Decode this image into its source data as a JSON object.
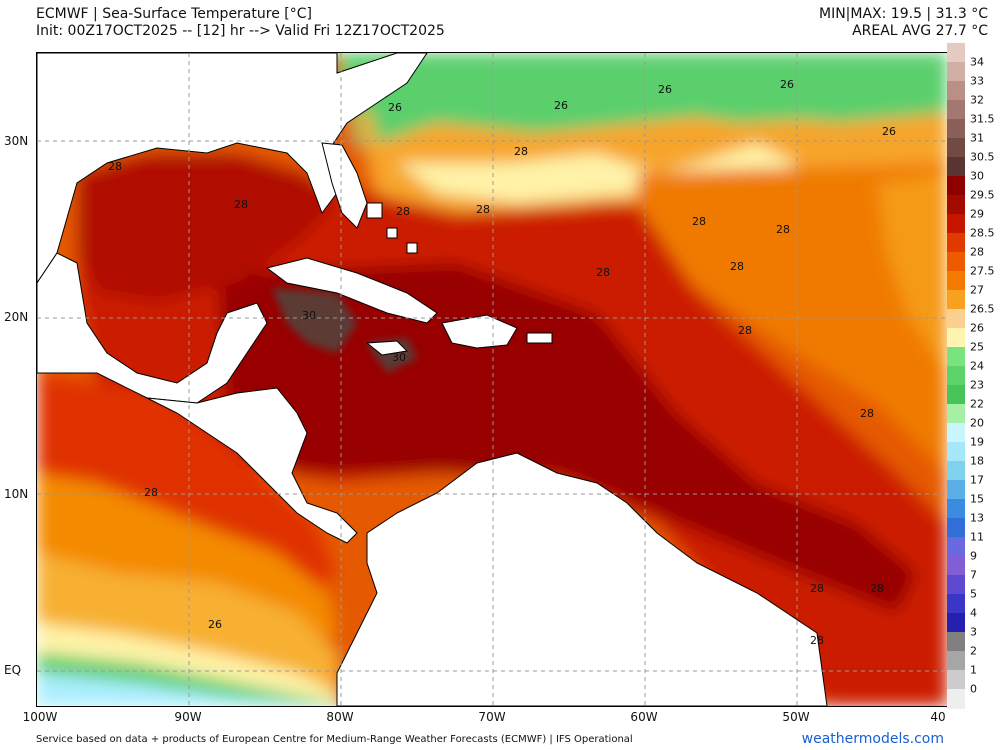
{
  "header": {
    "title_line1": "ECMWF | Sea-Surface Temperature [°C]",
    "title_line2": "Init: 00Z17OCT2025 -- [12] hr --> Valid Fri 12Z17OCT2025",
    "minmax": "MIN|MAX: 19.5 | 31.3 °C",
    "areal_avg": "AREAL AVG 27.7 °C"
  },
  "axes": {
    "lon_labels": [
      "100W",
      "90W",
      "80W",
      "70W",
      "60W",
      "50W",
      "40"
    ],
    "lat_labels": [
      "30N",
      "20N",
      "10N",
      "EQ"
    ]
  },
  "colorbar": {
    "labels": [
      "34",
      "33",
      "32",
      "31.5",
      "31",
      "30.5",
      "30",
      "29.5",
      "29",
      "28.5",
      "28",
      "27.5",
      "27",
      "26.5",
      "26",
      "25",
      "24",
      "23",
      "22",
      "20",
      "19",
      "18",
      "17",
      "15",
      "13",
      "11",
      "9",
      "7",
      "5",
      "4",
      "3",
      "2",
      "1",
      "0"
    ],
    "colors": [
      "#e6c9c0",
      "#d1aea6",
      "#b98f86",
      "#a27870",
      "#8a6058",
      "#714a42",
      "#5a3632",
      "#8c0000",
      "#a30a00",
      "#c71500",
      "#e03a00",
      "#ee5a00",
      "#f47b00",
      "#f8a020",
      "#fbd090",
      "#fff5b0",
      "#79e37e",
      "#5dd46a",
      "#48c45a",
      "#a6f0a6",
      "#c8f6ff",
      "#a6e8f9",
      "#7fd2ee",
      "#5ab0e6",
      "#3b8ce0",
      "#2f6fd6",
      "#6a6ae0",
      "#7f5ed6",
      "#5d4ad0",
      "#3a36c6",
      "#2521b0",
      "#808080",
      "#a6a6a6",
      "#cccccc",
      "#eeeeee"
    ]
  },
  "contour_labels": [
    "26",
    "26",
    "26",
    "26",
    "26",
    "28",
    "28",
    "28",
    "28",
    "28",
    "28",
    "28",
    "28",
    "28",
    "30",
    "30",
    "28",
    "28",
    "28",
    "28",
    "28",
    "28",
    "26"
  ],
  "footer": {
    "source": "Service based on data + products of European Centre for Medium-Range Weather Forecasts (ECMWF) | IFS Operational",
    "site": "weathermodels.com"
  }
}
